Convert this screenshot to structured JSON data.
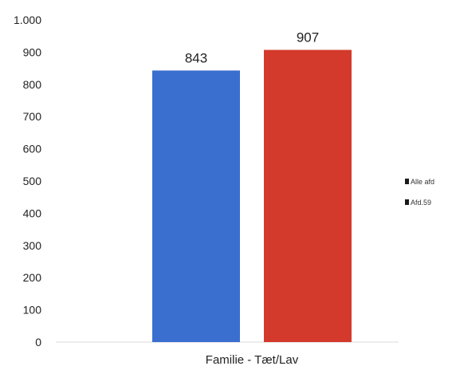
{
  "chart_data": {
    "type": "bar",
    "categories": [
      "Familie - Tæt/Lav"
    ],
    "series": [
      {
        "name": "Alle afd",
        "values": [
          843
        ],
        "color": "#3a6fd0",
        "label": "843"
      },
      {
        "name": "Afd.59",
        "values": [
          907
        ],
        "color": "#d33a2c",
        "label": "907"
      }
    ],
    "ylim": [
      0,
      1000
    ],
    "y_ticks": [
      {
        "value": 0,
        "label": "0"
      },
      {
        "value": 100,
        "label": "100"
      },
      {
        "value": 200,
        "label": "200"
      },
      {
        "value": 300,
        "label": "300"
      },
      {
        "value": 400,
        "label": "400"
      },
      {
        "value": 500,
        "label": "500"
      },
      {
        "value": 600,
        "label": "600"
      },
      {
        "value": 700,
        "label": "700"
      },
      {
        "value": 800,
        "label": "800"
      },
      {
        "value": 900,
        "label": "900"
      },
      {
        "value": 1000,
        "label": "1.000"
      }
    ],
    "grid": false,
    "legend_position": "right"
  }
}
